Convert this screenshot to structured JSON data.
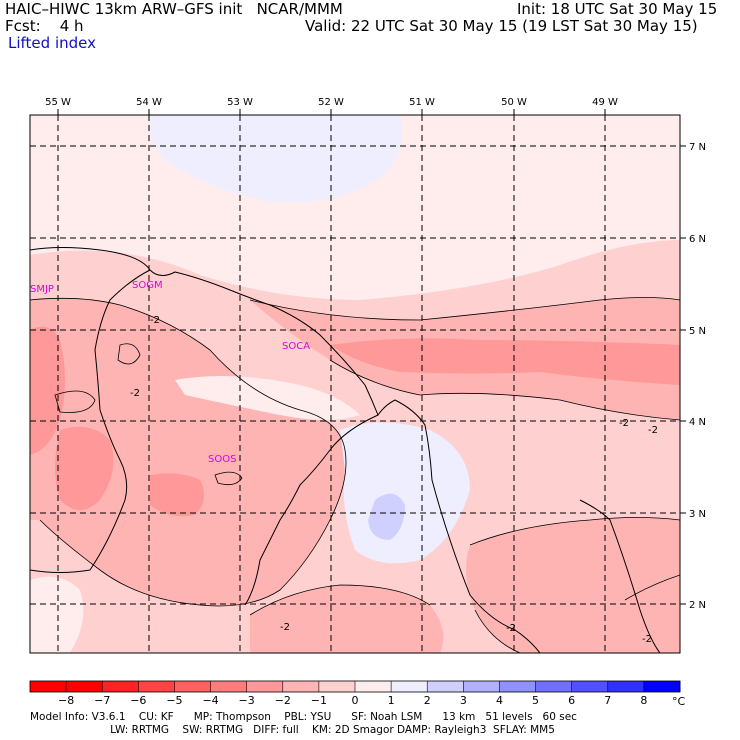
{
  "header": {
    "model_line": "HAIC–HIWC 13km ARW–GFS init   NCAR/MMM",
    "init_line": "Init: 18 UTC Sat 30 May 15",
    "fcst_line": "Fcst:    4 h",
    "valid_line": "Valid: 22 UTC Sat 30 May 15 (19 LST Sat 30 May 15)",
    "field_name": "Lifted index"
  },
  "map": {
    "lon_labels": [
      "55 W",
      "54 W",
      "53 W",
      "52 W",
      "51 W",
      "50 W",
      "49 W"
    ],
    "lat_labels": [
      "7 N",
      "6 N",
      "5 N",
      "4 N",
      "3 N",
      "2 N"
    ],
    "stations": [
      "SMJP",
      "SOGM",
      "SOCA",
      "SOOS"
    ],
    "contour_labels": [
      "-2",
      "-2",
      "-2",
      "-2",
      "-2",
      "-2",
      "-2"
    ]
  },
  "colorbar": {
    "ticks": [
      "−8",
      "−7",
      "−6",
      "−5",
      "−4",
      "−3",
      "−2",
      "−1",
      "0",
      "1",
      "2",
      "3",
      "4",
      "5",
      "6",
      "7",
      "8"
    ],
    "unit": "°C",
    "colors": [
      "#ff0000",
      "#ff2222",
      "#ff4444",
      "#ff6060",
      "#ff7c7c",
      "#ff9898",
      "#ffb4b4",
      "#ffd0d0",
      "#ffecec",
      "#eeeeff",
      "#d0d0ff",
      "#b0b0ff",
      "#9090ff",
      "#7070ff",
      "#5050ff",
      "#3030ff",
      "#0000ff"
    ]
  },
  "footer": {
    "line1": "Model Info: V3.6.1    CU: KF      MP: Thompson    PBL: YSU      SF: Noah LSM      13 km   51 levels   60 sec",
    "line2": "                        LW: RRTMG    SW: RRTMG   DIFF: full    KM: 2D Smagor DAMP: Rayleigh3  SFLAY: MM5"
  }
}
